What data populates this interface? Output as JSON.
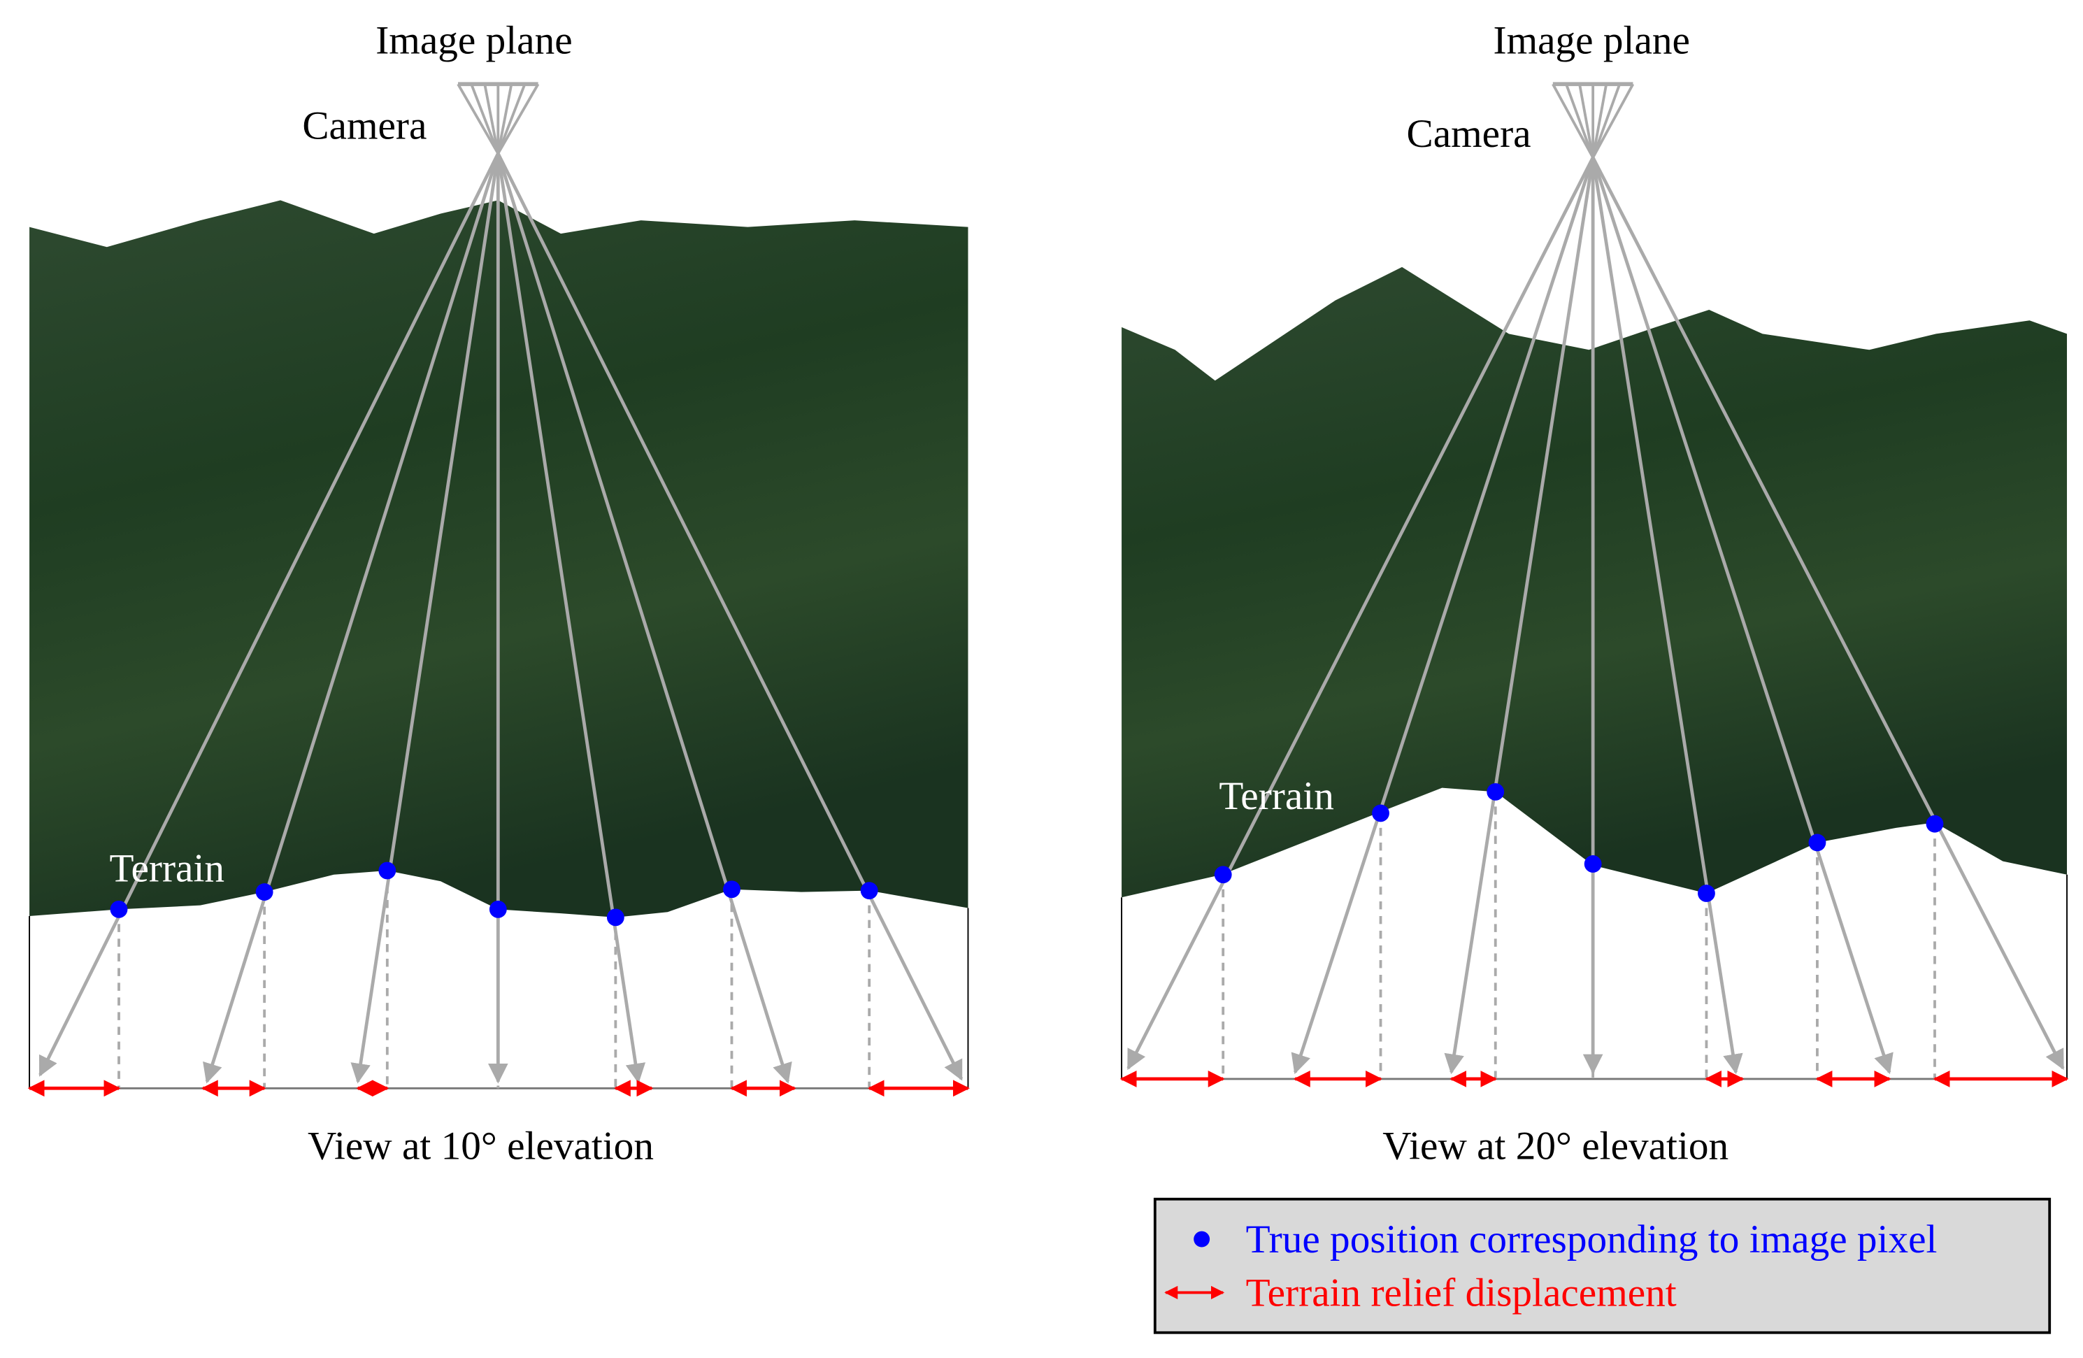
{
  "panels": [
    {
      "image_plane_label": "Image plane",
      "camera_label": "Camera",
      "terrain_label": "Terrain",
      "caption": "View at 10° elevation"
    },
    {
      "image_plane_label": "Image plane",
      "camera_label": "Camera",
      "terrain_label": "Terrain",
      "caption": "View at 20° elevation"
    }
  ],
  "legend": {
    "items": [
      {
        "label": "True position corresponding to image pixel"
      },
      {
        "label": "Terrain relief displacement"
      }
    ]
  }
}
